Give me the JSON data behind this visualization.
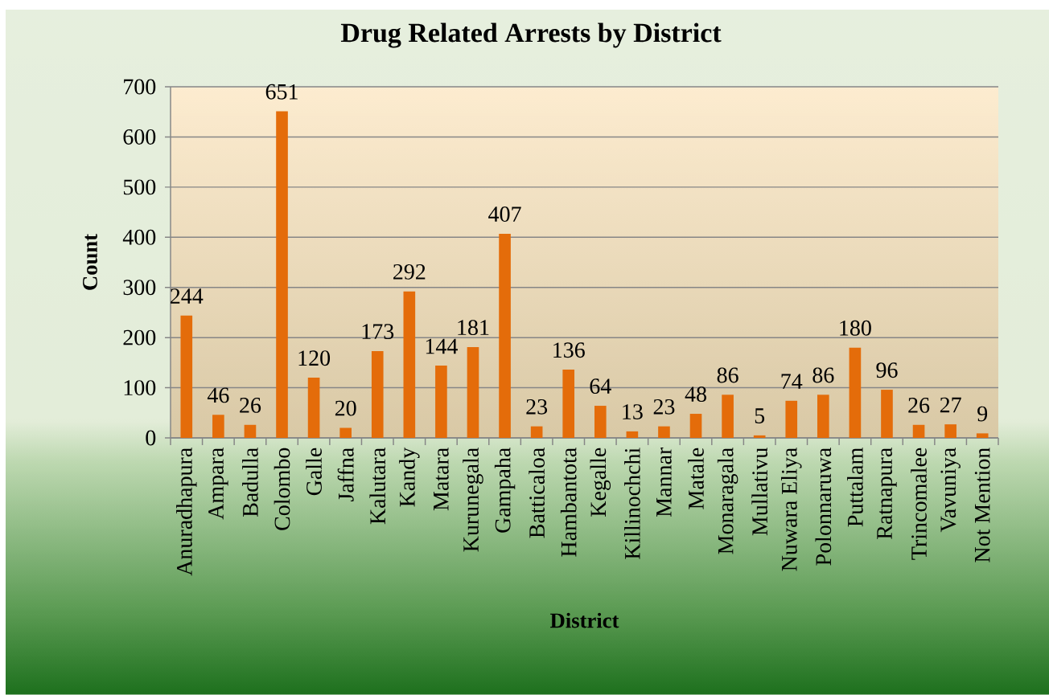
{
  "chart_data": {
    "type": "bar",
    "title": "Drug Related Arrests by District",
    "xlabel": "District",
    "ylabel": "Count",
    "categories": [
      "Anuradhapura",
      "Ampara",
      "Badulla",
      "Colombo",
      "Galle",
      "Jaffna",
      "Kalutara",
      "Kandy",
      "Matara",
      "Kurunegala",
      "Gampaha",
      "Batticaloa",
      "Hambantota",
      "Kegalle",
      "Killinochchi",
      "Mannar",
      "Matale",
      "Monaragala",
      "Mullativu",
      "Nuwara Eliya",
      "Polonnaruwa",
      "Puttalam",
      "Ratnapura",
      "Trincomalee",
      "Vavuniya",
      "Not Mention"
    ],
    "values": [
      244,
      46,
      26,
      651,
      120,
      20,
      173,
      292,
      144,
      181,
      407,
      23,
      136,
      64,
      13,
      23,
      48,
      86,
      5,
      74,
      86,
      180,
      96,
      26,
      27,
      9
    ],
    "color": "#e46c0a",
    "ylim": [
      0,
      700
    ],
    "yticks": [
      0,
      100,
      200,
      300,
      400,
      500,
      600,
      700
    ],
    "grid": "y",
    "data_labels": true
  }
}
